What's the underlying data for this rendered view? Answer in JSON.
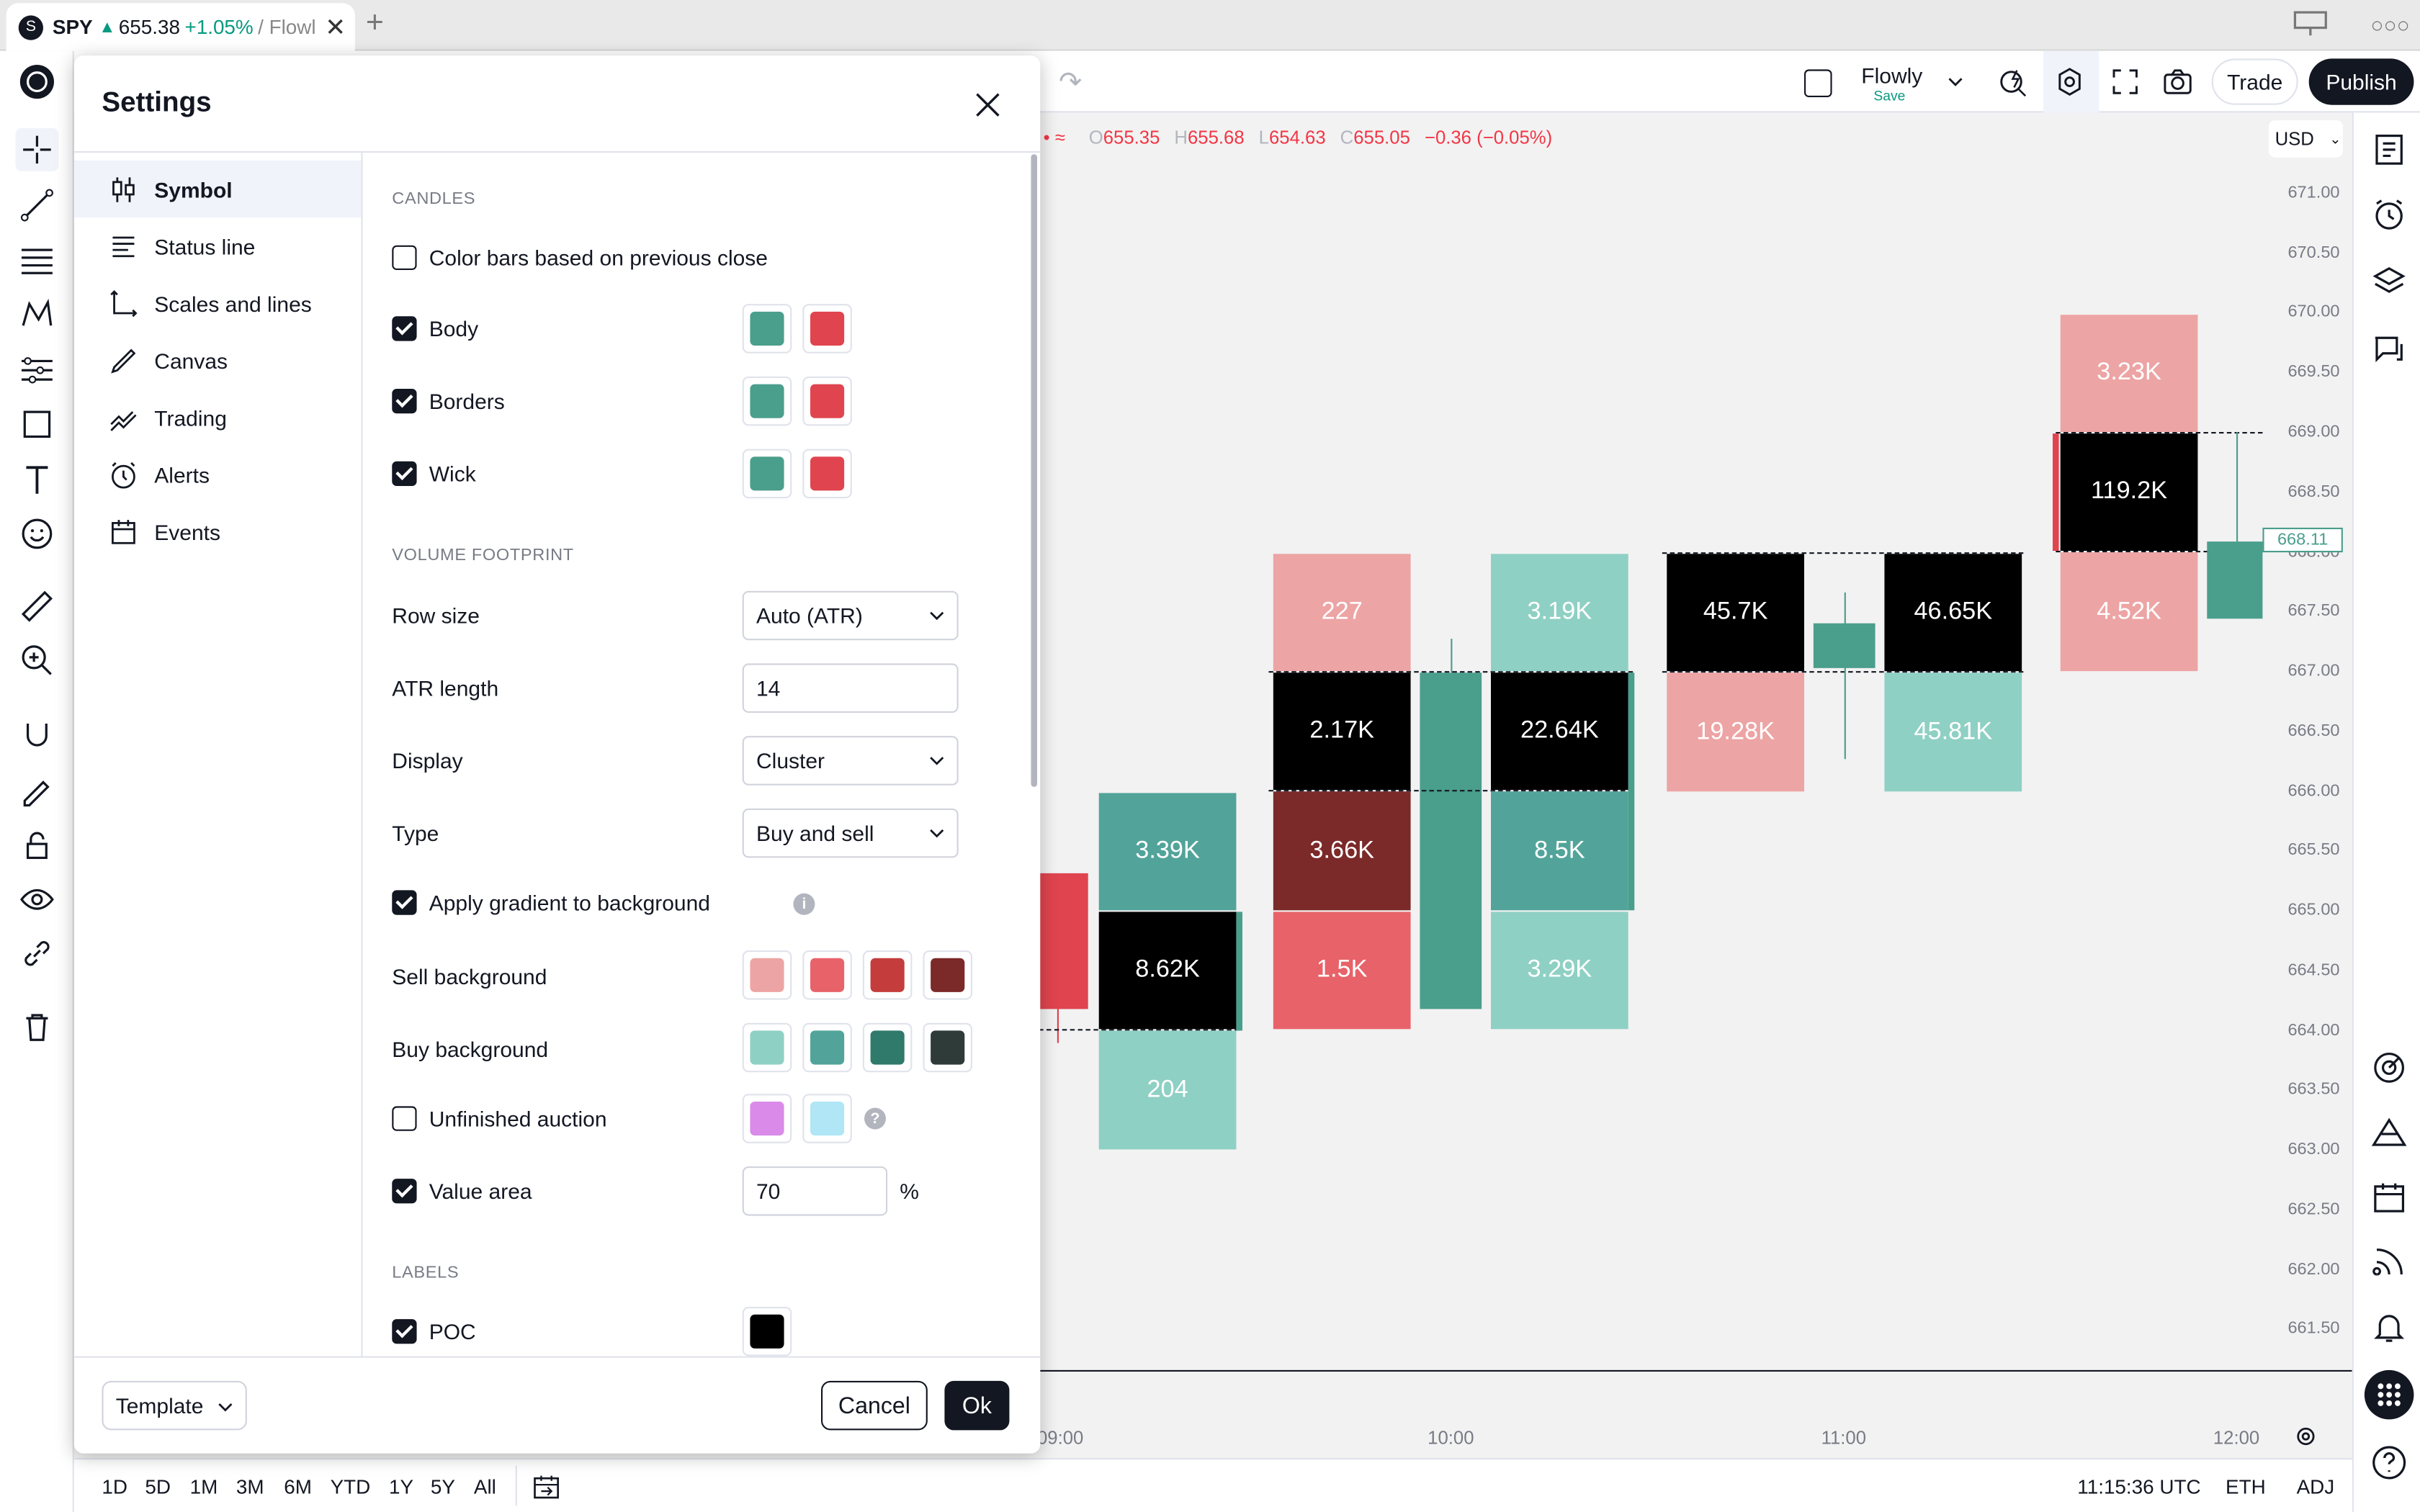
{
  "browser": {
    "tab": {
      "favicon": "S",
      "symbol": "SPY",
      "arrow": "▲",
      "price": "655.38",
      "change": "+1.05%",
      "rest": "/ Flowl"
    },
    "tab_close": "✕",
    "new_tab": "+"
  },
  "topbar": {
    "layout_name": "Flowly",
    "save_label": "Save",
    "trade_label": "Trade",
    "publish_label": "Publish"
  },
  "ohlc": {
    "o_label": "O",
    "o": "655.35",
    "h_label": "H",
    "h": "655.68",
    "l_label": "L",
    "l": "654.63",
    "c_label": "C",
    "c": "655.05",
    "change": "−0.36 (−0.05%)"
  },
  "currency": "USD",
  "price_axis": [
    "671.00",
    "670.50",
    "670.00",
    "669.50",
    "669.00",
    "668.50",
    "668.00",
    "667.50",
    "667.00",
    "666.50",
    "666.00",
    "665.50",
    "665.00",
    "664.50",
    "664.00",
    "663.50",
    "663.00",
    "662.50",
    "662.00",
    "661.50"
  ],
  "current_price": "668.11",
  "time_axis": [
    "09:00",
    "10:00",
    "11:00",
    "12:00"
  ],
  "footprint_cells": [
    {
      "label": "3.39K",
      "color": "#52a49a"
    },
    {
      "label": "8.62K",
      "color": "#000000"
    },
    {
      "label": "204",
      "color": "#8fd0c4"
    },
    {
      "label": "227",
      "color": "#eda4a4"
    },
    {
      "label": "2.17K",
      "color": "#000000"
    },
    {
      "label": "3.66K",
      "color": "#7b2929"
    },
    {
      "label": "1.5K",
      "color": "#e8626a"
    },
    {
      "label": "3.19K",
      "color": "#8fd0c4"
    },
    {
      "label": "22.64K",
      "color": "#000000"
    },
    {
      "label": "8.5K",
      "color": "#52a49a"
    },
    {
      "label": "3.29K",
      "color": "#8fd0c4"
    },
    {
      "label": "45.7K",
      "color": "#000000"
    },
    {
      "label": "19.28K",
      "color": "#eda4a4"
    },
    {
      "label": "46.65K",
      "color": "#000000"
    },
    {
      "label": "45.81K",
      "color": "#8fd0c4"
    },
    {
      "label": "3.23K",
      "color": "#eda4a4"
    },
    {
      "label": "119.2K",
      "color": "#000000"
    },
    {
      "label": "4.52K",
      "color": "#eda4a4"
    }
  ],
  "bottombar": {
    "ranges": [
      "1D",
      "5D",
      "1M",
      "3M",
      "6M",
      "YTD",
      "1Y",
      "5Y",
      "All"
    ],
    "clock": "11:15:36 UTC",
    "session": "ETH",
    "adj": "ADJ"
  },
  "dialog": {
    "title": "Settings",
    "nav": [
      {
        "label": "Symbol",
        "icon": "candles-icon"
      },
      {
        "label": "Status line",
        "icon": "status-line-icon"
      },
      {
        "label": "Scales and lines",
        "icon": "scales-icon"
      },
      {
        "label": "Canvas",
        "icon": "brush-icon"
      },
      {
        "label": "Trading",
        "icon": "trading-icon"
      },
      {
        "label": "Alerts",
        "icon": "alarm-clock-icon"
      },
      {
        "label": "Events",
        "icon": "calendar-icon"
      }
    ],
    "sections": {
      "candles": "CANDLES",
      "volume_footprint": "VOLUME FOOTPRINT",
      "labels": "LABELS"
    },
    "color_bars_label": "Color bars based on previous close",
    "body_label": "Body",
    "borders_label": "Borders",
    "wick_label": "Wick",
    "row_size_label": "Row size",
    "row_size_value": "Auto (ATR)",
    "atr_length_label": "ATR length",
    "atr_length_value": "14",
    "display_label": "Display",
    "display_value": "Cluster",
    "type_label": "Type",
    "type_value": "Buy and sell",
    "gradient_label": "Apply gradient to background",
    "sell_bg_label": "Sell background",
    "buy_bg_label": "Buy background",
    "unfinished_label": "Unfinished auction",
    "value_area_label": "Value area",
    "value_area_value": "70",
    "value_area_unit": "%",
    "poc_label": "POC",
    "template_label": "Template",
    "cancel_label": "Cancel",
    "ok_label": "Ok"
  },
  "colors": {
    "up": "#4a9e8c",
    "down": "#e0444e",
    "sell": [
      "#eda4a4",
      "#e8626a",
      "#c43c3c",
      "#7b2929"
    ],
    "buy": [
      "#8fd0c4",
      "#52a49a",
      "#2f7a6a",
      "#2e3b38"
    ],
    "unfinished": [
      "#da8ae9",
      "#b0e6f5"
    ],
    "poc": "#000000"
  }
}
